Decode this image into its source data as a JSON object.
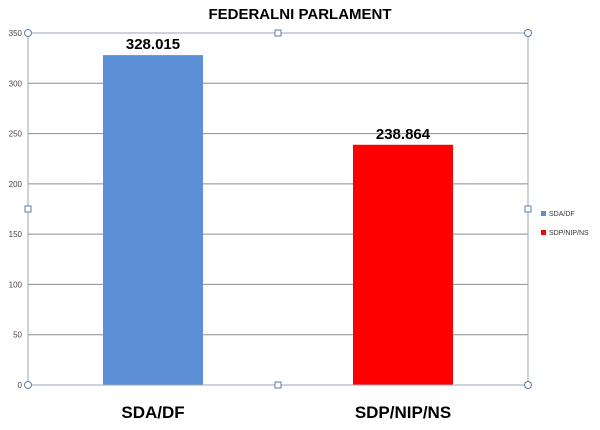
{
  "chart_data": {
    "type": "bar",
    "title": "FEDERALNI PARLAMENT",
    "categories": [
      "SDA/DF",
      "SDP/NIP/NS"
    ],
    "values": [
      328.015,
      238.864
    ],
    "data_labels": [
      "328.015",
      "238.864"
    ],
    "colors": [
      "#5b8fd6",
      "#ff0000"
    ],
    "ylim": [
      0,
      350
    ],
    "yticks": [
      0,
      50,
      100,
      150,
      200,
      250,
      300,
      350
    ],
    "grid": true,
    "legend": {
      "placement": "right",
      "entries": [
        "SDA/DF",
        "SDP/NIP/NS"
      ]
    },
    "xlabel": "",
    "ylabel": ""
  }
}
